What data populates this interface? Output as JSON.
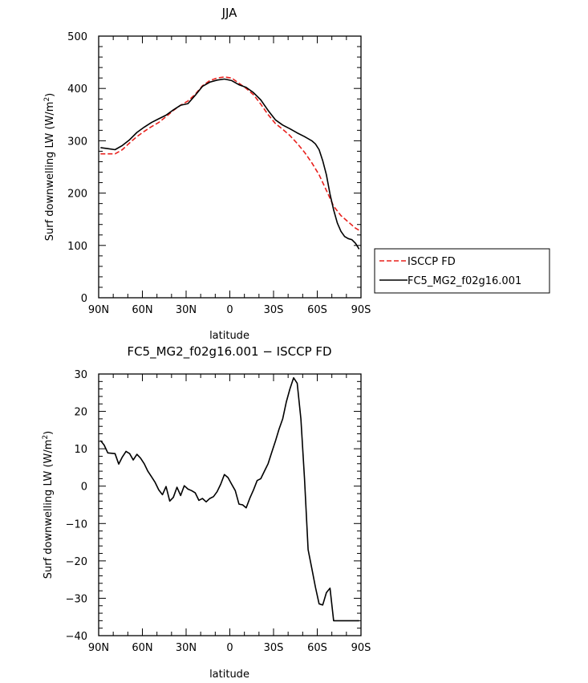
{
  "chart_data": [
    {
      "type": "line",
      "title": "JJA",
      "xlabel": "latitude",
      "ylabel": "Surf downwelling LW (W/m",
      "ylabel_sup": "2",
      "ylabel_close": ")",
      "xlim": [
        90,
        -90
      ],
      "ylim": [
        0,
        500
      ],
      "x_ticks": [
        90,
        60,
        30,
        0,
        -30,
        -60,
        -90
      ],
      "x_tick_labels": [
        "90N",
        "60N",
        "30N",
        "0",
        "30S",
        "60S",
        "90S"
      ],
      "y_ticks": [
        0,
        100,
        200,
        300,
        400,
        500
      ],
      "y_tick_labels": [
        "0",
        "100",
        "200",
        "300",
        "400",
        "500"
      ],
      "grid": false,
      "legend": "right",
      "series": [
        {
          "name": "ISCCP FD",
          "color": "#e8201c",
          "dash": "dashed",
          "x": [
            88.75,
            83.75,
            78.75,
            73.75,
            68.75,
            63.75,
            58.75,
            53.75,
            48.75,
            43.75,
            38.75,
            33.75,
            28.75,
            23.75,
            18.75,
            13.75,
            8.75,
            3.75,
            -1.25,
            -6.25,
            -11.25,
            -16.25,
            -21.25,
            -26.25,
            -31.25,
            -36.25,
            -41.25,
            -46.25,
            -51.25,
            -56.25,
            -61.25,
            -66.25,
            -71.25,
            -76.25,
            -81.25,
            -86.25,
            -88.75
          ],
          "y": [
            275,
            275,
            275,
            283,
            296,
            308,
            318,
            327,
            335,
            346,
            358,
            368,
            376,
            389,
            405,
            415,
            420,
            422,
            420,
            410,
            400,
            388,
            370,
            350,
            333,
            322,
            310,
            295,
            278,
            258,
            235,
            205,
            175,
            157,
            145,
            133,
            129
          ]
        },
        {
          "name": "FC5_MG2_f02g16.001",
          "color": "#000000",
          "dash": "solid",
          "x": [
            88.75,
            83.75,
            78.75,
            73.75,
            68.75,
            63.75,
            58.75,
            53.75,
            48.75,
            43.75,
            38.75,
            33.75,
            28.75,
            23.75,
            18.75,
            13.75,
            8.75,
            3.75,
            -1.25,
            -6.25,
            -11.25,
            -16.25,
            -21.25,
            -26.25,
            -31.25,
            -36.25,
            -41.25,
            -46.25,
            -51.25,
            -56.25,
            -58.75,
            -61.25,
            -63.75,
            -66.25,
            -68.75,
            -71.25,
            -73.75,
            -76.25,
            -78.75,
            -81.25,
            -83.75,
            -86.25,
            -88.75
          ],
          "y": [
            287,
            285,
            283,
            291,
            302,
            316,
            326,
            335,
            342,
            349,
            359,
            368,
            371,
            387,
            404,
            412,
            416,
            418,
            415,
            407,
            402,
            392,
            378,
            358,
            340,
            330,
            323,
            315,
            308,
            300,
            294,
            283,
            262,
            235,
            198,
            168,
            143,
            127,
            117,
            113,
            111,
            104,
            93
          ]
        }
      ]
    },
    {
      "type": "line",
      "title": "FC5_MG2_f02g16.001 − ISCCP FD",
      "xlabel": "latitude",
      "ylabel": "Surf downwelling LW (W/m",
      "ylabel_sup": "2",
      "ylabel_close": ")",
      "xlim": [
        90,
        -90
      ],
      "ylim": [
        -40,
        30
      ],
      "x_ticks": [
        90,
        60,
        30,
        0,
        -30,
        -60,
        -90
      ],
      "x_tick_labels": [
        "90N",
        "60N",
        "30N",
        "0",
        "30S",
        "60S",
        "90S"
      ],
      "y_ticks": [
        -40,
        -30,
        -20,
        -10,
        0,
        10,
        20,
        30
      ],
      "y_tick_labels": [
        "−40",
        "−30",
        "−20",
        "−10",
        "0",
        "10",
        "20",
        "30"
      ],
      "grid": false,
      "series": [
        {
          "name": "",
          "color": "#000000",
          "dash": "solid",
          "x": [
            88.75,
            86.25,
            83.75,
            78.75,
            76.25,
            73.75,
            71.25,
            68.75,
            66.25,
            63.75,
            61.25,
            58.75,
            56.25,
            53.75,
            51.25,
            48.75,
            46.25,
            43.75,
            41.25,
            38.75,
            36.25,
            33.75,
            31.25,
            28.75,
            26.25,
            23.75,
            21.25,
            18.75,
            16.25,
            13.75,
            11.25,
            8.75,
            6.25,
            3.75,
            1.25,
            -1.25,
            -3.75,
            -6.25,
            -8.75,
            -11.25,
            -13.75,
            -16.25,
            -18.75,
            -21.25,
            -23.75,
            -26.25,
            -28.75,
            -31.25,
            -33.75,
            -36.25,
            -38.75,
            -41.25,
            -43.75,
            -46.25,
            -48.75,
            -51.25,
            -53.75,
            -56.25,
            -58.75,
            -61.25,
            -63.75,
            -66.25,
            -68.75,
            -71.25,
            -73.75,
            -76.25,
            -78.75,
            -81.25,
            -83.75,
            -86.25,
            -88.75
          ],
          "y": [
            12.2,
            11.0,
            8.9,
            8.7,
            5.9,
            7.8,
            9.3,
            8.7,
            7.0,
            8.5,
            7.5,
            6.0,
            4.0,
            2.5,
            1.0,
            -1.0,
            -2.3,
            -0.1,
            -4.0,
            -3.0,
            -0.3,
            -2.5,
            0.1,
            -0.8,
            -1.2,
            -1.8,
            -3.8,
            -3.3,
            -4.2,
            -3.3,
            -2.8,
            -1.5,
            0.5,
            3.1,
            2.3,
            0.5,
            -1.2,
            -4.8,
            -5.0,
            -5.8,
            -3.2,
            -1.0,
            1.5,
            2.0,
            4.0,
            6.0,
            9.0,
            12.0,
            15.2,
            18.0,
            22.5,
            26.0,
            29.0,
            27.5,
            18.0,
            2.0,
            -17.0,
            -22.0,
            -27.0,
            -31.5,
            -31.8,
            -28.5,
            -27.3,
            -36.0,
            -36.0,
            -36.0,
            -36.0,
            -36.0,
            -36.0,
            -36.0,
            -36.0
          ]
        }
      ]
    }
  ]
}
